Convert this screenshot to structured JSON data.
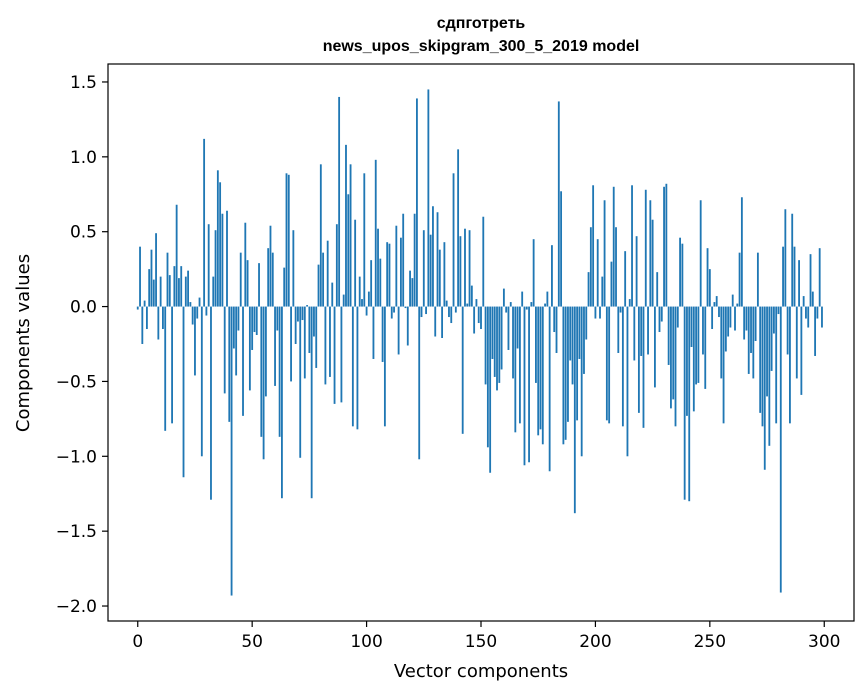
{
  "chart_data": {
    "type": "bar",
    "title": "сдпготреть",
    "subtitle": "news_upos_skipgram_300_5_2019 model",
    "xlabel": "Vector components",
    "ylabel": "Components values",
    "xlim": [
      -13,
      313
    ],
    "ylim": [
      -2.1,
      1.62
    ],
    "xticks": [
      0,
      50,
      100,
      150,
      200,
      250,
      300
    ],
    "xtick_labels": [
      "0",
      "50",
      "100",
      "150",
      "200",
      "250",
      "300"
    ],
    "yticks": [
      -2.0,
      -1.5,
      -1.0,
      -0.5,
      0.0,
      0.5,
      1.0,
      1.5
    ],
    "ytick_labels": [
      "−2.0",
      "−1.5",
      "−1.0",
      "−0.5",
      "0.0",
      "0.5",
      "1.0",
      "1.5"
    ],
    "bar_color": "#1f77b4",
    "x": "components 0–299",
    "values": [
      -0.02,
      0.4,
      -0.25,
      0.04,
      -0.15,
      0.25,
      0.38,
      0.18,
      0.49,
      -0.22,
      0.2,
      -0.15,
      -0.83,
      0.36,
      0.21,
      -0.78,
      0.27,
      0.68,
      0.19,
      0.27,
      -1.14,
      0.2,
      0.24,
      0.03,
      -0.12,
      -0.46,
      -0.08,
      0.06,
      -1.0,
      1.12,
      -0.06,
      0.55,
      -1.29,
      0.2,
      0.51,
      0.91,
      0.83,
      0.62,
      -0.58,
      0.64,
      -0.77,
      -1.93,
      -0.28,
      -0.46,
      -0.16,
      0.36,
      -0.73,
      0.56,
      0.31,
      -0.56,
      -0.29,
      -0.17,
      -0.19,
      0.29,
      -0.87,
      -1.02,
      -0.6,
      0.39,
      0.54,
      0.36,
      -0.53,
      -0.16,
      -0.87,
      -1.28,
      0.26,
      0.89,
      0.88,
      -0.5,
      0.51,
      -0.25,
      -0.1,
      -1.01,
      -0.09,
      -0.48,
      0.01,
      -0.31,
      -1.28,
      -0.2,
      -0.41,
      0.28,
      0.95,
      0.36,
      -0.52,
      0.44,
      -0.47,
      0.16,
      -0.65,
      0.55,
      1.4,
      -0.64,
      0.08,
      1.08,
      0.75,
      0.95,
      -0.8,
      0.58,
      -0.82,
      0.2,
      0.05,
      0.89,
      -0.06,
      0.1,
      0.31,
      -0.35,
      0.98,
      0.52,
      0.32,
      -0.37,
      -0.8,
      0.43,
      0.42,
      -0.08,
      -0.04,
      0.54,
      -0.32,
      0.46,
      0.62,
      -0.01,
      -0.26,
      0.24,
      0.19,
      0.62,
      1.39,
      -1.02,
      -0.07,
      0.51,
      -0.05,
      1.45,
      0.48,
      0.67,
      -0.2,
      0.63,
      0.38,
      -0.21,
      0.43,
      0.04,
      -0.07,
      -0.11,
      0.89,
      -0.04,
      1.05,
      0.47,
      -0.85,
      0.52,
      0.02,
      0.51,
      0.14,
      -0.18,
      0.05,
      -0.11,
      -0.15,
      0.6,
      -0.52,
      -0.94,
      -1.11,
      -0.35,
      -0.47,
      -0.56,
      -0.51,
      -0.42,
      0.12,
      -0.04,
      -0.29,
      0.03,
      -0.48,
      -0.84,
      -0.28,
      -0.78,
      0.1,
      -1.06,
      -0.02,
      -1.04,
      0.03,
      0.45,
      -0.51,
      -0.86,
      -0.82,
      -0.92,
      0.02,
      0.1,
      -1.1,
      0.41,
      -0.17,
      -0.31,
      1.37,
      0.77,
      -0.92,
      -0.89,
      -0.77,
      -0.36,
      -0.52,
      -1.38,
      -0.76,
      -0.35,
      -1.0,
      -0.45,
      -0.22,
      0.23,
      0.53,
      0.81,
      -0.08,
      0.45,
      -0.08,
      0.2,
      0.71,
      -0.76,
      -0.78,
      0.3,
      0.8,
      0.53,
      -0.31,
      -0.04,
      -0.8,
      0.37,
      -1.0,
      0.05,
      0.81,
      -0.36,
      0.47,
      -0.71,
      -0.33,
      -0.81,
      0.78,
      -0.32,
      0.71,
      0.58,
      -0.54,
      0.23,
      -0.17,
      -0.1,
      0.8,
      0.82,
      -0.39,
      -0.68,
      -0.62,
      -0.8,
      -0.14,
      0.46,
      0.42,
      -1.29,
      -0.73,
      -1.3,
      -0.27,
      -0.7,
      -0.52,
      -0.51,
      0.71,
      -0.32,
      -0.55,
      0.39,
      0.25,
      -0.15,
      0.03,
      0.07,
      -0.07,
      -0.48,
      -0.78,
      -0.3,
      -0.2,
      -0.14,
      0.08,
      -0.16,
      0.02,
      0.36,
      0.73,
      -0.22,
      -0.16,
      -0.45,
      -0.31,
      -0.48,
      -0.23,
      0.36,
      -0.71,
      -0.8,
      -1.09,
      -0.6,
      -0.93,
      -0.43,
      -0.18,
      -0.78,
      -0.05,
      -1.91,
      0.4,
      0.65,
      -0.32,
      -0.78,
      0.62,
      0.4,
      -0.48,
      0.31,
      -0.59,
      0.07,
      -0.08,
      -0.14,
      0.35,
      0.1,
      -0.33,
      -0.08,
      0.39,
      -0.14
    ]
  }
}
